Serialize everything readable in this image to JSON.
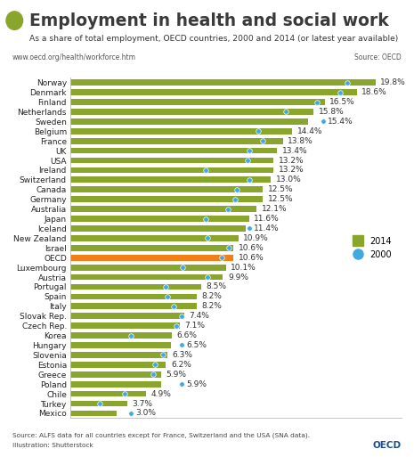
{
  "chart_data": {
    "type": "bar",
    "orientation": "horizontal",
    "title": "Employment in health and social work",
    "subtitle": "As a share of total employment, OECD countries, 2000 and 2014 (or latest year available)",
    "url": "www.oecd.org/health/workforce.htm",
    "source": "Source: OECD",
    "footnote": "Source: ALFS data for all countries except for France, Switzerland and the USA (SNA data).",
    "illustration": "Illustration: Shutterstock",
    "logo": "OECD",
    "categories": [
      "Norway",
      "Denmark",
      "Finland",
      "Netherlands",
      "Sweden",
      "Belgium",
      "France",
      "UK",
      "USA",
      "Ireland",
      "Switzerland",
      "Canada",
      "Germany",
      "Australia",
      "Japan",
      "Iceland",
      "New Zealand",
      "Israel",
      "OECD",
      "Luxembourg",
      "Austria",
      "Portugal",
      "Spain",
      "Italy",
      "Slovak Rep.",
      "Czech Rep.",
      "Korea",
      "Hungary",
      "Slovenia",
      "Estonia",
      "Greece",
      "Poland",
      "Chile",
      "Turkey",
      "Mexico"
    ],
    "series": [
      {
        "name": "2014",
        "type": "bar",
        "color": "#8aa52b",
        "colors": [
          "#8aa52b",
          "#8aa52b",
          "#8aa52b",
          "#8aa52b",
          "#8aa52b",
          "#8aa52b",
          "#8aa52b",
          "#8aa52b",
          "#8aa52b",
          "#8aa52b",
          "#8aa52b",
          "#8aa52b",
          "#8aa52b",
          "#8aa52b",
          "#8aa52b",
          "#8aa52b",
          "#8aa52b",
          "#8aa52b",
          "#f07f1a",
          "#8aa52b",
          "#8aa52b",
          "#8aa52b",
          "#8aa52b",
          "#8aa52b",
          "#8aa52b",
          "#8aa52b",
          "#8aa52b",
          "#8aa52b",
          "#8aa52b",
          "#8aa52b",
          "#8aa52b",
          "#8aa52b",
          "#8aa52b",
          "#8aa52b",
          "#8aa52b"
        ],
        "values": [
          19.8,
          18.6,
          16.5,
          15.8,
          15.4,
          14.4,
          13.8,
          13.4,
          13.2,
          13.2,
          13.0,
          12.5,
          12.5,
          12.1,
          11.6,
          11.4,
          10.9,
          10.6,
          10.6,
          10.1,
          9.9,
          8.5,
          8.2,
          8.2,
          7.4,
          7.1,
          6.6,
          6.5,
          6.3,
          6.2,
          5.9,
          5.9,
          4.9,
          3.7,
          3.0
        ],
        "value_labels": [
          "19.8%",
          "18.6%",
          "16.5%",
          "15.8%",
          "15.4%",
          "14.4%",
          "13.8%",
          "13.4%",
          "13.2%",
          "13.2%",
          "13.0%",
          "12.5%",
          "12.5%",
          "12.1%",
          "11.6%",
          "11.4%",
          "10.9%",
          "10.6%",
          "10.6%",
          "10.1%",
          "9.9%",
          "8.5%",
          "8.2%",
          "8.2%",
          "7.4%",
          "7.1%",
          "6.6%",
          "6.5%",
          "6.3%",
          "6.2%",
          "5.9%",
          "5.9%",
          "4.9%",
          "3.7%",
          "3.0%"
        ]
      },
      {
        "name": "2000",
        "type": "scatter",
        "color": "#3fa9e0",
        "marker": "circle",
        "values": [
          18.0,
          17.5,
          16.0,
          14.0,
          16.4,
          12.2,
          12.5,
          11.6,
          11.5,
          8.8,
          11.6,
          10.8,
          10.7,
          10.2,
          8.8,
          11.6,
          8.9,
          10.3,
          9.8,
          7.3,
          8.9,
          6.2,
          6.3,
          6.7,
          7.2,
          6.9,
          3.9,
          7.2,
          6.0,
          5.5,
          5.4,
          7.2,
          3.5,
          1.9,
          3.9
        ]
      }
    ],
    "xlim": [
      0,
      21.5
    ],
    "tick_labels": "y",
    "data_labels": true,
    "legend": "center right"
  }
}
